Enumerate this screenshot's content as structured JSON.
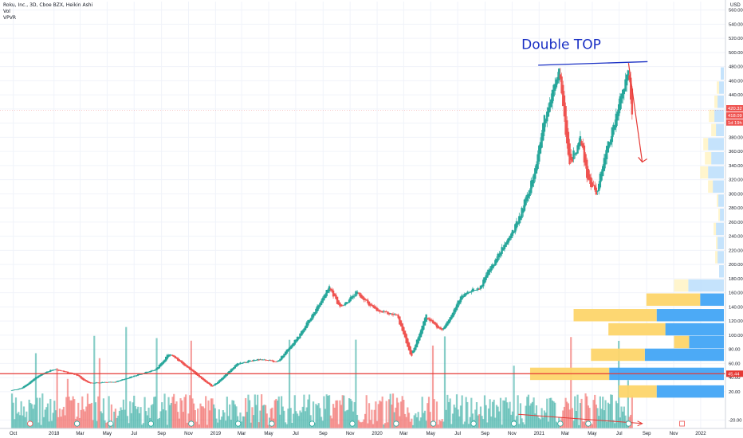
{
  "legend": {
    "symbol_line": "Roku, Inc., 3D, Cboe BZX, Heikin Ashi",
    "volume_label": "Vol",
    "vpvr_label": "VPVR"
  },
  "price_scale": {
    "currency": "USD",
    "current_price": "420.32",
    "second_price": "418.09",
    "countdown": "1d 19h",
    "horizontal_line_price": "45.44"
  },
  "annotations": {
    "double_top": "Double    TOP"
  },
  "colors": {
    "up": "#26a69a",
    "down": "#ef5350",
    "blue_line": "#1a30c4",
    "red_line": "#e53935",
    "vp_up": "#64b5f6",
    "vp_down": "#ffd54f"
  },
  "chart_data": {
    "type": "candlestick",
    "chart_style": "heikin-ashi",
    "interval": "3D",
    "y_axis": {
      "ticks": [
        -20,
        20,
        40,
        60,
        80,
        100,
        120,
        140,
        160,
        180,
        200,
        220,
        240,
        260,
        280,
        300,
        320,
        340,
        360,
        380,
        400,
        420,
        440,
        460,
        480,
        500,
        520,
        540,
        560
      ],
      "range": [
        -32,
        572
      ]
    },
    "x_axis": {
      "tick_labels": [
        "Oct",
        "2018",
        "Mar",
        "May",
        "Jul",
        "Sep",
        "Nov",
        "2019",
        "Mar",
        "May",
        "Jul",
        "Sep",
        "Nov",
        "2020",
        "Mar",
        "May",
        "Jul",
        "Sep",
        "Nov",
        "2021",
        "Mar",
        "May",
        "Jul",
        "Sep",
        "Nov",
        "2022"
      ],
      "tick_dates": [
        "2017-10-01",
        "2018-01-01",
        "2018-03-01",
        "2018-05-01",
        "2018-07-01",
        "2018-09-01",
        "2018-11-01",
        "2019-01-01",
        "2019-03-01",
        "2019-05-01",
        "2019-07-01",
        "2019-09-01",
        "2019-11-01",
        "2020-01-01",
        "2020-03-01",
        "2020-05-01",
        "2020-07-01",
        "2020-09-01",
        "2020-11-01",
        "2021-01-01",
        "2021-03-01",
        "2021-05-01",
        "2021-07-01",
        "2021-09-01",
        "2021-11-01",
        "2022-01-01"
      ],
      "range": [
        "2017-09-01",
        "2022-02-26"
      ]
    },
    "price_keypoints": [
      [
        "2017-09-28",
        22
      ],
      [
        "2017-10-20",
        25
      ],
      [
        "2017-11-25",
        42
      ],
      [
        "2018-01-01",
        52
      ],
      [
        "2018-02-20",
        44
      ],
      [
        "2018-03-20",
        32
      ],
      [
        "2018-05-20",
        34
      ],
      [
        "2018-07-15",
        45
      ],
      [
        "2018-08-20",
        52
      ],
      [
        "2018-09-18",
        74
      ],
      [
        "2018-10-28",
        55
      ],
      [
        "2018-12-24",
        27
      ],
      [
        "2019-02-20",
        60
      ],
      [
        "2019-04-10",
        66
      ],
      [
        "2019-05-20",
        62
      ],
      [
        "2019-07-10",
        100
      ],
      [
        "2019-09-15",
        168
      ],
      [
        "2019-10-10",
        138
      ],
      [
        "2019-11-15",
        160
      ],
      [
        "2020-01-01",
        134
      ],
      [
        "2020-02-15",
        128
      ],
      [
        "2020-03-18",
        70
      ],
      [
        "2020-04-20",
        128
      ],
      [
        "2020-05-25",
        106
      ],
      [
        "2020-07-10",
        155
      ],
      [
        "2020-08-20",
        168
      ],
      [
        "2020-09-18",
        200
      ],
      [
        "2020-11-10",
        255
      ],
      [
        "2020-12-20",
        325
      ],
      [
        "2021-01-10",
        400
      ],
      [
        "2021-02-16",
        475
      ],
      [
        "2021-03-10",
        340
      ],
      [
        "2021-04-05",
        380
      ],
      [
        "2021-04-20",
        322
      ],
      [
        "2021-05-12",
        300
      ],
      [
        "2021-05-25",
        345
      ],
      [
        "2021-06-20",
        400
      ],
      [
        "2021-07-08",
        445
      ],
      [
        "2021-07-22",
        470
      ],
      [
        "2021-07-30",
        418
      ]
    ],
    "volume_profile": [
      {
        "price": 20,
        "up": 0.85,
        "down": 0.48
      },
      {
        "price": 45,
        "up": 1.45,
        "down": 1.0
      },
      {
        "price": 72,
        "up": 1.0,
        "down": 0.68
      },
      {
        "price": 90,
        "up": 0.44,
        "down": 0.19
      },
      {
        "price": 108,
        "up": 0.74,
        "down": 0.72
      },
      {
        "price": 128,
        "up": 0.85,
        "down": 1.05
      },
      {
        "price": 150,
        "up": 0.3,
        "down": 0.68
      },
      {
        "price": 170,
        "up": 0.45,
        "down": 0.18
      },
      {
        "price": 190,
        "up": 0.06,
        "down": 0.0
      },
      {
        "price": 210,
        "up": 0.08,
        "down": 0.03
      },
      {
        "price": 230,
        "up": 0.08,
        "down": 0.02
      },
      {
        "price": 250,
        "up": 0.1,
        "down": 0.03
      },
      {
        "price": 270,
        "up": 0.05,
        "down": 0.02
      },
      {
        "price": 290,
        "up": 0.07,
        "down": 0.02
      },
      {
        "price": 310,
        "up": 0.14,
        "down": 0.06
      },
      {
        "price": 330,
        "up": 0.2,
        "down": 0.1
      },
      {
        "price": 350,
        "up": 0.16,
        "down": 0.08
      },
      {
        "price": 370,
        "up": 0.2,
        "down": 0.06
      },
      {
        "price": 390,
        "up": 0.1,
        "down": 0.06
      },
      {
        "price": 410,
        "up": 0.12,
        "down": 0.07
      },
      {
        "price": 430,
        "up": 0.08,
        "down": 0.04
      },
      {
        "price": 450,
        "up": 0.06,
        "down": 0.03
      },
      {
        "price": 470,
        "up": 0.04,
        "down": 0.0
      }
    ],
    "drawings": {
      "double_top_line": {
        "start": [
          "2020-12-30",
          482
        ],
        "end": [
          "2021-09-03",
          487
        ]
      },
      "downward_arrow": {
        "start": [
          "2021-07-22",
          485
        ],
        "end": [
          "2021-08-22",
          345
        ]
      },
      "horizontal_line": {
        "price": 45.44
      },
      "volume_trend_line": {
        "start": [
          "2020-11-15",
          -12
        ],
        "end": [
          "2021-08-22",
          -25
        ]
      }
    }
  }
}
